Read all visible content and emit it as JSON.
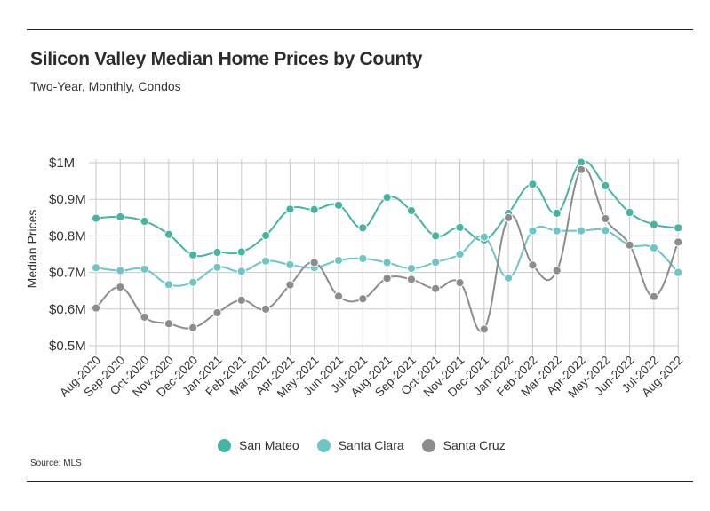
{
  "title": "Silicon Valley Median Home Prices by County",
  "subtitle": "Two-Year, Monthly, Condos",
  "source": "Source:  MLS",
  "chart_data": {
    "type": "line",
    "title": "Silicon Valley Median Home Prices by County",
    "subtitle": "Two-Year, Monthly, Condos",
    "xlabel": "",
    "ylabel": "Median Prices",
    "ylim": [
      0.5,
      1.0
    ],
    "yticks": [
      0.5,
      0.6,
      0.7,
      0.8,
      0.9,
      1.0
    ],
    "ytick_labels": [
      "$0.5M",
      "$0.6M",
      "$0.7M",
      "$0.8M",
      "$0.9M",
      "$1M"
    ],
    "grid": true,
    "legend_position": "bottom-center",
    "categories": [
      "Aug-2020",
      "Sep-2020",
      "Oct-2020",
      "Nov-2020",
      "Dec-2020",
      "Jan-2021",
      "Feb-2021",
      "Mar-2021",
      "Apr-2021",
      "May-2021",
      "Jun-2021",
      "Jul-2021",
      "Aug-2021",
      "Sep-2021",
      "Oct-2021",
      "Nov-2021",
      "Dec-2021",
      "Jan-2022",
      "Feb-2022",
      "Mar-2022",
      "Apr-2022",
      "May-2022",
      "Jun-2022",
      "Jul-2022",
      "Aug-2022"
    ],
    "series": [
      {
        "name": "San Mateo",
        "color": "#45b5a3",
        "values": [
          0.848,
          0.852,
          0.84,
          0.804,
          0.748,
          0.755,
          0.756,
          0.801,
          0.873,
          0.872,
          0.884,
          0.822,
          0.905,
          0.869,
          0.8,
          0.823,
          0.789,
          0.862,
          0.941,
          0.862,
          1.001,
          0.937,
          0.864,
          0.831,
          0.822
        ]
      },
      {
        "name": "Santa Clara",
        "color": "#6cc5c7",
        "values": [
          0.713,
          0.705,
          0.709,
          0.667,
          0.673,
          0.714,
          0.703,
          0.731,
          0.721,
          0.713,
          0.733,
          0.738,
          0.727,
          0.711,
          0.728,
          0.75,
          0.797,
          0.685,
          0.814,
          0.814,
          0.814,
          0.815,
          0.775,
          0.767,
          0.7
        ]
      },
      {
        "name": "Santa Cruz",
        "color": "#8c8c8c",
        "values": [
          0.603,
          0.66,
          0.578,
          0.56,
          0.549,
          0.59,
          0.624,
          0.6,
          0.666,
          0.727,
          0.635,
          0.628,
          0.684,
          0.681,
          0.656,
          0.672,
          0.545,
          0.85,
          0.72,
          0.705,
          0.981,
          0.847,
          0.775,
          0.634,
          0.783
        ]
      }
    ]
  }
}
